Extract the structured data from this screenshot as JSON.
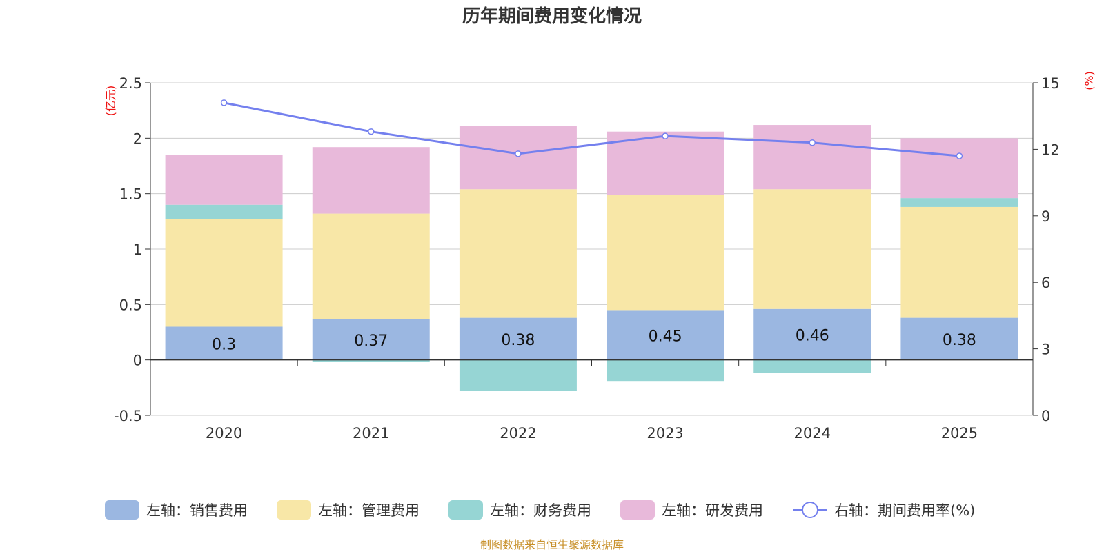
{
  "title": "历年期间费用变化情况",
  "source": "制图数据来自恒生聚源数据库",
  "chart_data": {
    "type": "bar",
    "stacked": true,
    "categories": [
      "2020",
      "2021",
      "2022",
      "2023",
      "2024",
      "2025"
    ],
    "left_axis": {
      "unit": "(亿元)",
      "ylim": [
        -0.5,
        2.5
      ],
      "ticks": [
        -0.5,
        0,
        0.5,
        1,
        1.5,
        2,
        2.5
      ],
      "tick_labels": [
        "-0.5",
        "0",
        "0.5",
        "1",
        "1.5",
        "2",
        "2.5"
      ]
    },
    "right_axis": {
      "unit": "(%)",
      "ylim": [
        0,
        15
      ],
      "ticks": [
        0,
        3,
        6,
        9,
        12,
        15
      ],
      "tick_labels": [
        "0",
        "3",
        "6",
        "9",
        "12",
        "15"
      ]
    },
    "series": [
      {
        "name": "左轴：销售费用",
        "axis": "left",
        "kind": "bar",
        "color": "#9bb7e1",
        "values": [
          0.3,
          0.37,
          0.38,
          0.45,
          0.46,
          0.38
        ],
        "labels": [
          "0.3",
          "0.37",
          "0.38",
          "0.45",
          "0.46",
          "0.38"
        ]
      },
      {
        "name": "左轴：管理费用",
        "axis": "left",
        "kind": "bar",
        "color": "#f8e7a7",
        "values": [
          0.97,
          0.95,
          1.16,
          1.04,
          1.08,
          1.0
        ]
      },
      {
        "name": "左轴：财务费用",
        "axis": "left",
        "kind": "bar",
        "color": "#96d5d4",
        "values": [
          0.13,
          -0.02,
          -0.28,
          -0.19,
          -0.12,
          0.08
        ]
      },
      {
        "name": "左轴：研发费用",
        "axis": "left",
        "kind": "bar",
        "color": "#e8b9da",
        "values": [
          0.45,
          0.6,
          0.57,
          0.57,
          0.58,
          0.54
        ]
      },
      {
        "name": "右轴：期间费用率(%)",
        "axis": "right",
        "kind": "line",
        "color": "#7480ee",
        "values": [
          14.1,
          12.8,
          11.8,
          12.6,
          12.3,
          11.7
        ]
      }
    ]
  }
}
